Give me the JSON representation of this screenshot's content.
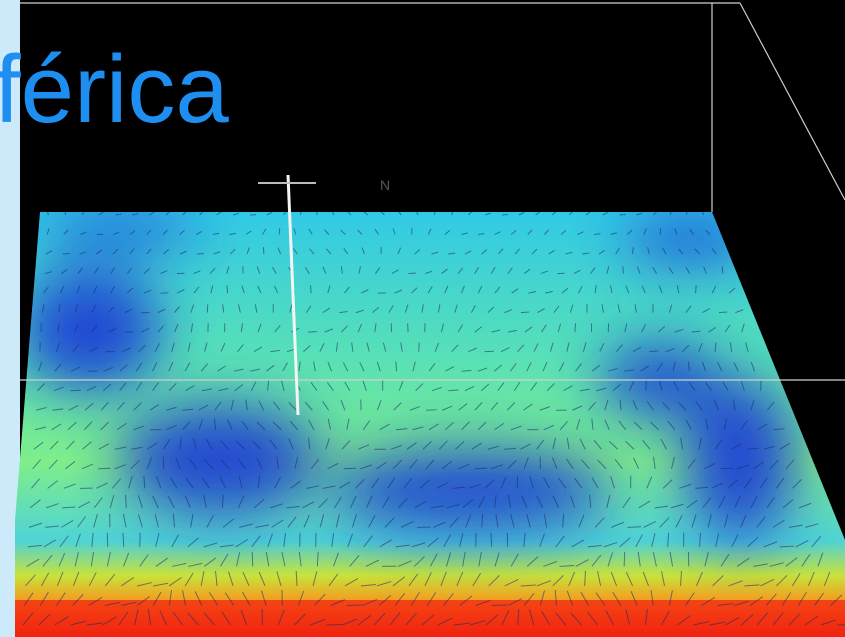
{
  "title": "férica",
  "compass_label": "N"
}
